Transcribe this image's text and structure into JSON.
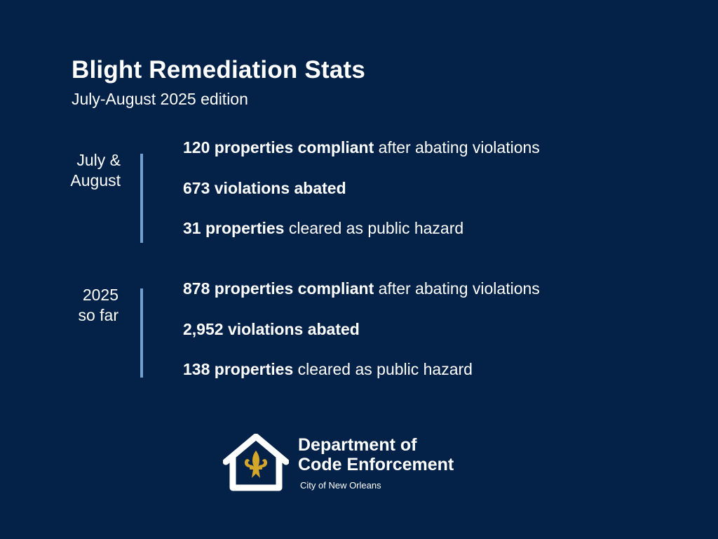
{
  "header": {
    "title": "Blight Remediation Stats",
    "subtitle": "July-August 2025 edition"
  },
  "sections": [
    {
      "label_lines": [
        "July &",
        "August"
      ],
      "stats": [
        {
          "bold": "120 properties compliant",
          "rest": " after abating violations"
        },
        {
          "bold": "673 violations abated",
          "rest": ""
        },
        {
          "bold": "31 properties",
          "rest": " cleared as public hazard"
        }
      ]
    },
    {
      "label_lines": [
        "2025",
        "so far"
      ],
      "stats": [
        {
          "bold": "878 properties compliant",
          "rest": " after abating violations"
        },
        {
          "bold": "2,952 violations abated",
          "rest": ""
        },
        {
          "bold": "138 properties",
          "rest": " cleared as public hazard"
        }
      ]
    }
  ],
  "footer": {
    "logo_icon": "house-fleur-de-lis-icon",
    "dept_line1": "Department of",
    "dept_line2": "Code Enforcement",
    "city": "City of New Orleans"
  },
  "colors": {
    "background": "#042248",
    "divider": "#6f9fce",
    "fleur_de_lis": "#d4a72c",
    "text": "#ffffff"
  }
}
